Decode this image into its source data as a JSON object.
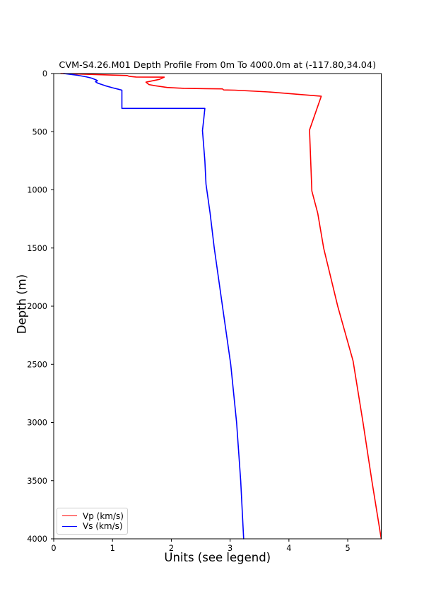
{
  "chart_data": {
    "type": "line",
    "title": "CVM-S4.26.M01 Depth Profile From 0m To 4000.0m at (-117.80,34.04)",
    "xlabel": "Units (see legend)",
    "ylabel": "Depth (m)",
    "xlim": [
      0,
      5.57
    ],
    "ylim": [
      0,
      4000
    ],
    "y_inverted": true,
    "x_ticks": [
      0,
      1,
      2,
      3,
      4,
      5
    ],
    "y_ticks": [
      0,
      500,
      1000,
      1500,
      2000,
      2500,
      3000,
      3500,
      4000
    ],
    "grid": false,
    "legend_position": "lower left",
    "axis_color": "#000000",
    "background_color": "#ffffff",
    "point_format": [
      "velocity_km_s",
      "depth_m"
    ],
    "series": [
      {
        "id": "vp-line",
        "name": "Vp (km/s)",
        "color": "#ff0000",
        "points": [
          [
            0.12,
            0
          ],
          [
            1.25,
            17
          ],
          [
            1.28,
            24
          ],
          [
            1.4,
            30
          ],
          [
            1.88,
            31
          ],
          [
            1.8,
            50
          ],
          [
            1.57,
            74
          ],
          [
            1.62,
            95
          ],
          [
            1.73,
            105
          ],
          [
            1.93,
            120
          ],
          [
            2.21,
            127
          ],
          [
            2.6,
            130
          ],
          [
            2.87,
            132
          ],
          [
            2.89,
            141
          ],
          [
            3.08,
            143
          ],
          [
            3.65,
            158
          ],
          [
            4.55,
            195
          ],
          [
            4.35,
            485
          ],
          [
            4.39,
            1010
          ],
          [
            4.49,
            1200
          ],
          [
            4.59,
            1500
          ],
          [
            4.83,
            2000
          ],
          [
            5.09,
            2470
          ],
          [
            5.26,
            3000
          ],
          [
            5.41,
            3500
          ],
          [
            5.57,
            4000
          ]
        ]
      },
      {
        "id": "vs-line",
        "name": "Vs (km/s)",
        "color": "#0000ff",
        "points": [
          [
            0.17,
            0
          ],
          [
            0.3,
            8
          ],
          [
            0.41,
            15
          ],
          [
            0.55,
            28
          ],
          [
            0.65,
            40
          ],
          [
            0.72,
            55
          ],
          [
            0.745,
            62
          ],
          [
            0.71,
            70
          ],
          [
            0.74,
            80
          ],
          [
            0.79,
            90
          ],
          [
            0.88,
            105
          ],
          [
            1.0,
            122
          ],
          [
            1.1,
            135
          ],
          [
            1.16,
            143
          ],
          [
            1.16,
            300
          ],
          [
            2.57,
            300
          ],
          [
            2.55,
            400
          ],
          [
            2.53,
            490
          ],
          [
            2.57,
            750
          ],
          [
            2.59,
            950
          ],
          [
            2.66,
            1200
          ],
          [
            2.73,
            1500
          ],
          [
            2.87,
            2000
          ],
          [
            3.01,
            2500
          ],
          [
            3.11,
            3000
          ],
          [
            3.18,
            3500
          ],
          [
            3.23,
            4000
          ]
        ]
      }
    ]
  }
}
